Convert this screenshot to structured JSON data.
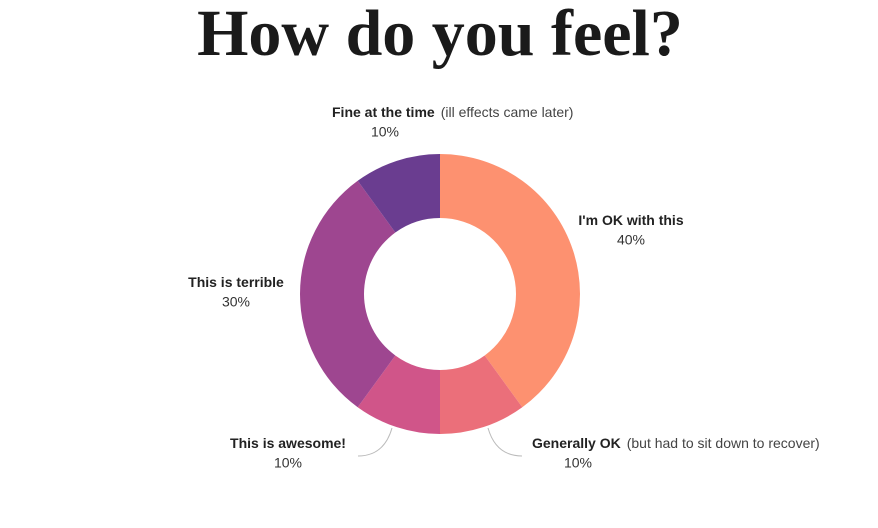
{
  "chart_data": {
    "type": "donut",
    "title": "How do you feel?",
    "categories": [
      "I'm OK with this",
      "Generally OK",
      "This is awesome!",
      "This is terrible",
      "Fine at the time"
    ],
    "notes": [
      null,
      "(but had to sit down to recover)",
      null,
      null,
      "(ill effects came later)"
    ],
    "values": [
      40,
      10,
      10,
      30,
      10
    ],
    "value_labels": [
      "40%",
      "10%",
      "10%",
      "30%",
      "10%"
    ],
    "colors": [
      "#fd9170",
      "#eb6f7a",
      "#d05589",
      "#9e4690",
      "#6a3d90"
    ]
  }
}
